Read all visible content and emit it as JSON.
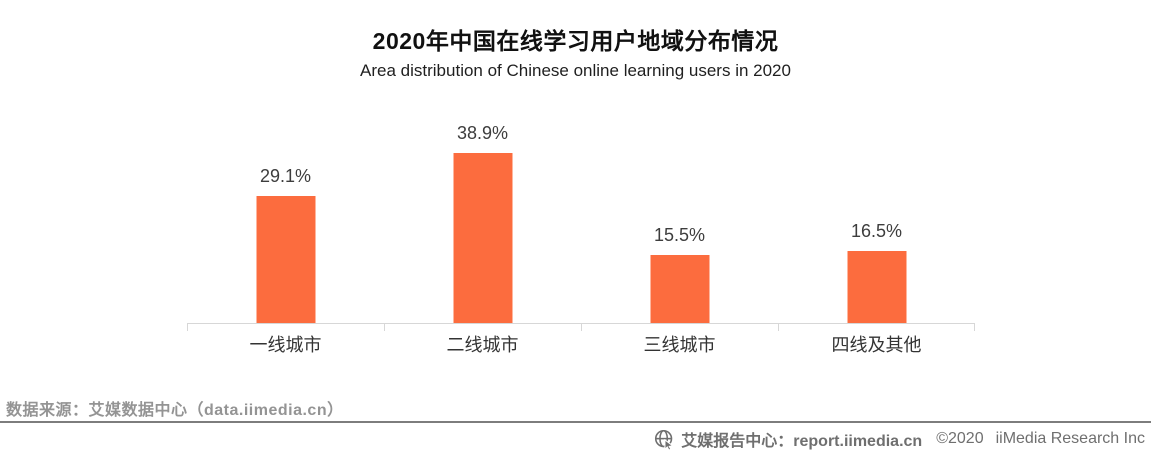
{
  "title": "2020年中国在线学习用户地域分布情况",
  "subtitle": "Area distribution of Chinese online learning users in 2020",
  "chart_data": {
    "type": "bar",
    "title": "2020年中国在线学习用户地域分布情况",
    "subtitle": "Area distribution of Chinese online learning users in 2020",
    "categories": [
      "一线城市",
      "二线城市",
      "三线城市",
      "四线及其他"
    ],
    "values": [
      29.1,
      38.9,
      15.5,
      16.5
    ],
    "value_labels": [
      "29.1%",
      "38.9%",
      "15.5%",
      "16.5%"
    ],
    "xlabel": "",
    "ylabel": "",
    "ylim": [
      0,
      45
    ],
    "grid": false,
    "legend_position": "none",
    "bar_color": "#FC6C3E",
    "axis_color": "#D7D7D7"
  },
  "footer": {
    "source_text": "数据来源：艾媒数据中心（data.iimedia.cn）",
    "brand_text": "艾媒报告中心：report.iimedia.cn",
    "copyright_text": "©2020",
    "company_text": "iiMedia Research Inc",
    "logo_icon": "globe-cursor-icon"
  },
  "colors": {
    "bar": "#FC6C3E",
    "axis": "#D7D7D7",
    "value_label": "#3D3D3D",
    "category_label": "#333333",
    "source_gray": "#949494",
    "brand_gray": "#6F6F6F",
    "divider_gray": "#7D7D7D"
  }
}
